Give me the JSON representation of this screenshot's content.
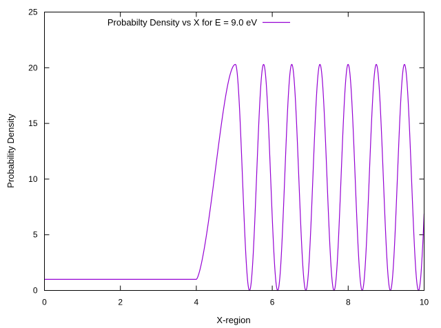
{
  "chart_data": {
    "type": "line",
    "title": "",
    "xlabel": "X-region",
    "ylabel": "Probability Density",
    "xlim": [
      0,
      10
    ],
    "ylim": [
      0,
      25
    ],
    "x_ticks": [
      0,
      2,
      4,
      6,
      8,
      10
    ],
    "y_ticks": [
      0,
      5,
      10,
      15,
      20,
      25
    ],
    "x_tick_labels": [
      "0",
      "2",
      "4",
      "6",
      "8",
      "10"
    ],
    "y_tick_labels": [
      "0",
      "5",
      "10",
      "15",
      "20",
      "25"
    ],
    "grid": false,
    "legend_position": "top-left",
    "series": [
      {
        "name": "Probabilty Density vs X for E = 9.0 eV",
        "color": "#9400d3",
        "model": {
          "flat_value": 1.0,
          "flat_until": 4.0,
          "rise_peak_x": 5.03,
          "peak_value": 20.3,
          "oscillation_period": 0.742,
          "first_zero_x": 5.4,
          "end_x": 10.0
        },
        "x": [
          0,
          1,
          2,
          3,
          4,
          4.2,
          4.4,
          4.6,
          4.8,
          5.03,
          5.4,
          5.77,
          6.14,
          6.51,
          6.88,
          7.26,
          7.63,
          8.0,
          8.37,
          8.74,
          9.11,
          9.48,
          9.85,
          10.0
        ],
        "values": [
          1.0,
          1.0,
          1.0,
          1.0,
          1.0,
          2.0,
          4.8,
          9.0,
          14.5,
          20.3,
          0.0,
          20.3,
          0.0,
          20.3,
          0.0,
          20.3,
          0.0,
          20.3,
          0.0,
          20.3,
          0.0,
          20.3,
          0.0,
          5.6
        ]
      }
    ]
  }
}
